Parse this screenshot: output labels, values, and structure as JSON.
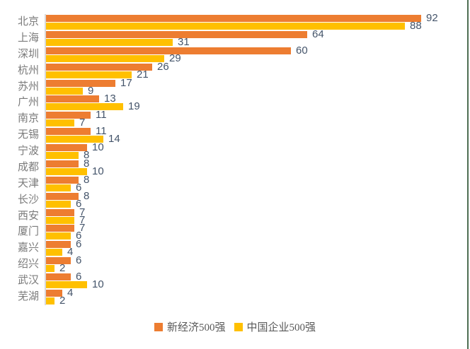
{
  "colors": {
    "series_new_economy": "#ED7D31",
    "series_china_top500": "#FFC000",
    "value_label": "#44546A",
    "category_label": "#7B7B7B",
    "axis_line": "#D9D9D9",
    "right_edge_line": "#4D6D52",
    "background": "#FFFFFF"
  },
  "chart_data": {
    "type": "bar",
    "orientation": "horizontal",
    "title": "",
    "xlabel": "",
    "ylabel": "",
    "value_axis_hidden": true,
    "value_axis_max_implied": 100,
    "grid": false,
    "legend_position": "bottom",
    "data_labels": "outside-end",
    "categories": [
      "北京",
      "上海",
      "深圳",
      "杭州",
      "苏州",
      "广州",
      "南京",
      "无锡",
      "宁波",
      "成都",
      "天津",
      "长沙",
      "西安",
      "厦门",
      "嘉兴",
      "绍兴",
      "武汉",
      "芜湖"
    ],
    "series": [
      {
        "name": "新经济500强",
        "color": "#ED7D31",
        "values": [
          92,
          64,
          60,
          26,
          17,
          13,
          11,
          11,
          10,
          8,
          8,
          8,
          7,
          7,
          6,
          6,
          6,
          4
        ]
      },
      {
        "name": "中国企业500强",
        "color": "#FFC000",
        "values": [
          88,
          31,
          29,
          21,
          9,
          19,
          7,
          14,
          8,
          10,
          6,
          6,
          7,
          6,
          4,
          2,
          10,
          2
        ]
      }
    ]
  }
}
